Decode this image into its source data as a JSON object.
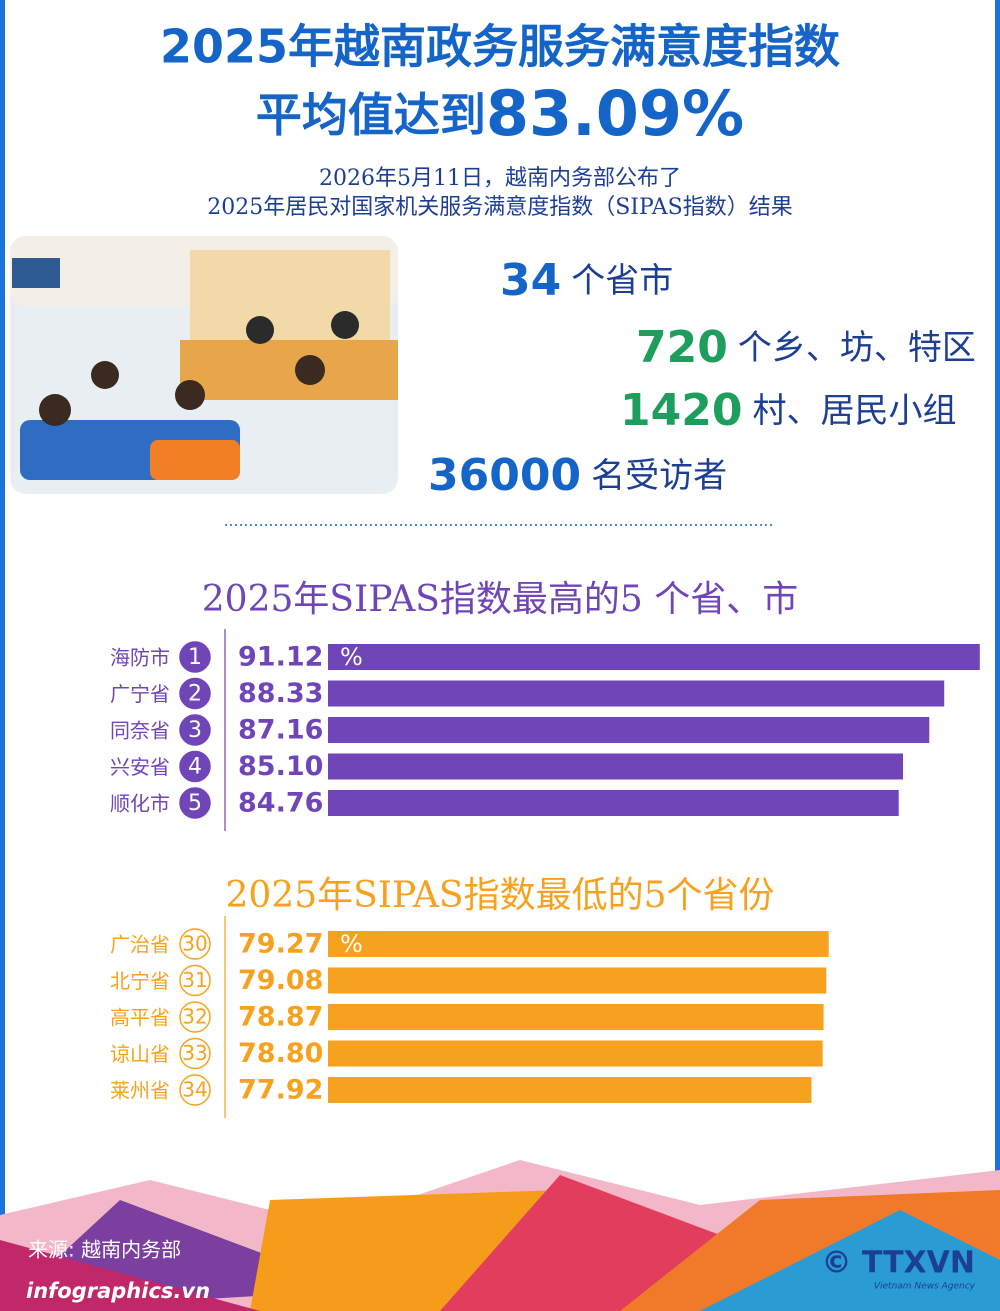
{
  "title": "2025年越南政务服务满意度指数",
  "title_line2": "平均值达到",
  "headline": "83.09%",
  "subtitle": [
    "2026年5月11日，越南内务部公布了",
    "2025年居民对国家机关服务满意度指数（SIPAS指数）结果"
  ],
  "stats": [
    {
      "number": 34,
      "label": "个省市"
    },
    {
      "number": 720,
      "label": "个乡、坊、特区"
    },
    {
      "number": 1420,
      "label": "村、居民小组"
    },
    {
      "number": 36000,
      "label": "名受访者"
    }
  ],
  "chart_data": [
    {
      "type": "bar",
      "title": "2025年SIPAS指数最高的5 个省、市",
      "categories": [
        "海防市",
        "广宁省",
        "同奈省",
        "兴安省",
        "顺化市"
      ],
      "ranks": [
        1,
        2,
        3,
        4,
        5
      ],
      "values": [
        91.12,
        88.33,
        87.16,
        85.1,
        84.76
      ],
      "value_labels": [
        "91.12",
        "88.33",
        "87.16",
        "85.10",
        "84.76"
      ],
      "unit": "%",
      "color": "#6f45b8",
      "rank_badge": "filled",
      "xlim": [
        40,
        92
      ]
    },
    {
      "type": "bar",
      "title": "2025年SIPAS指数最低的5个省份",
      "categories": [
        "广治省",
        "北宁省",
        "高平省",
        "谅山省",
        "莱州省"
      ],
      "ranks": [
        30,
        31,
        32,
        33,
        34
      ],
      "values": [
        79.27,
        79.08,
        78.87,
        78.8,
        77.92
      ],
      "value_labels": [
        "79.27",
        "79.08",
        "78.87",
        "78.80",
        "77.92"
      ],
      "unit": "%",
      "color": "#f6a21e",
      "rank_badge": "outline",
      "xlim": [
        40,
        92
      ]
    }
  ],
  "source": "来源: 越南内务部",
  "site": "infographics.vn",
  "agency": "© TTXVN",
  "agency_sub": "Vietnam News Agency"
}
